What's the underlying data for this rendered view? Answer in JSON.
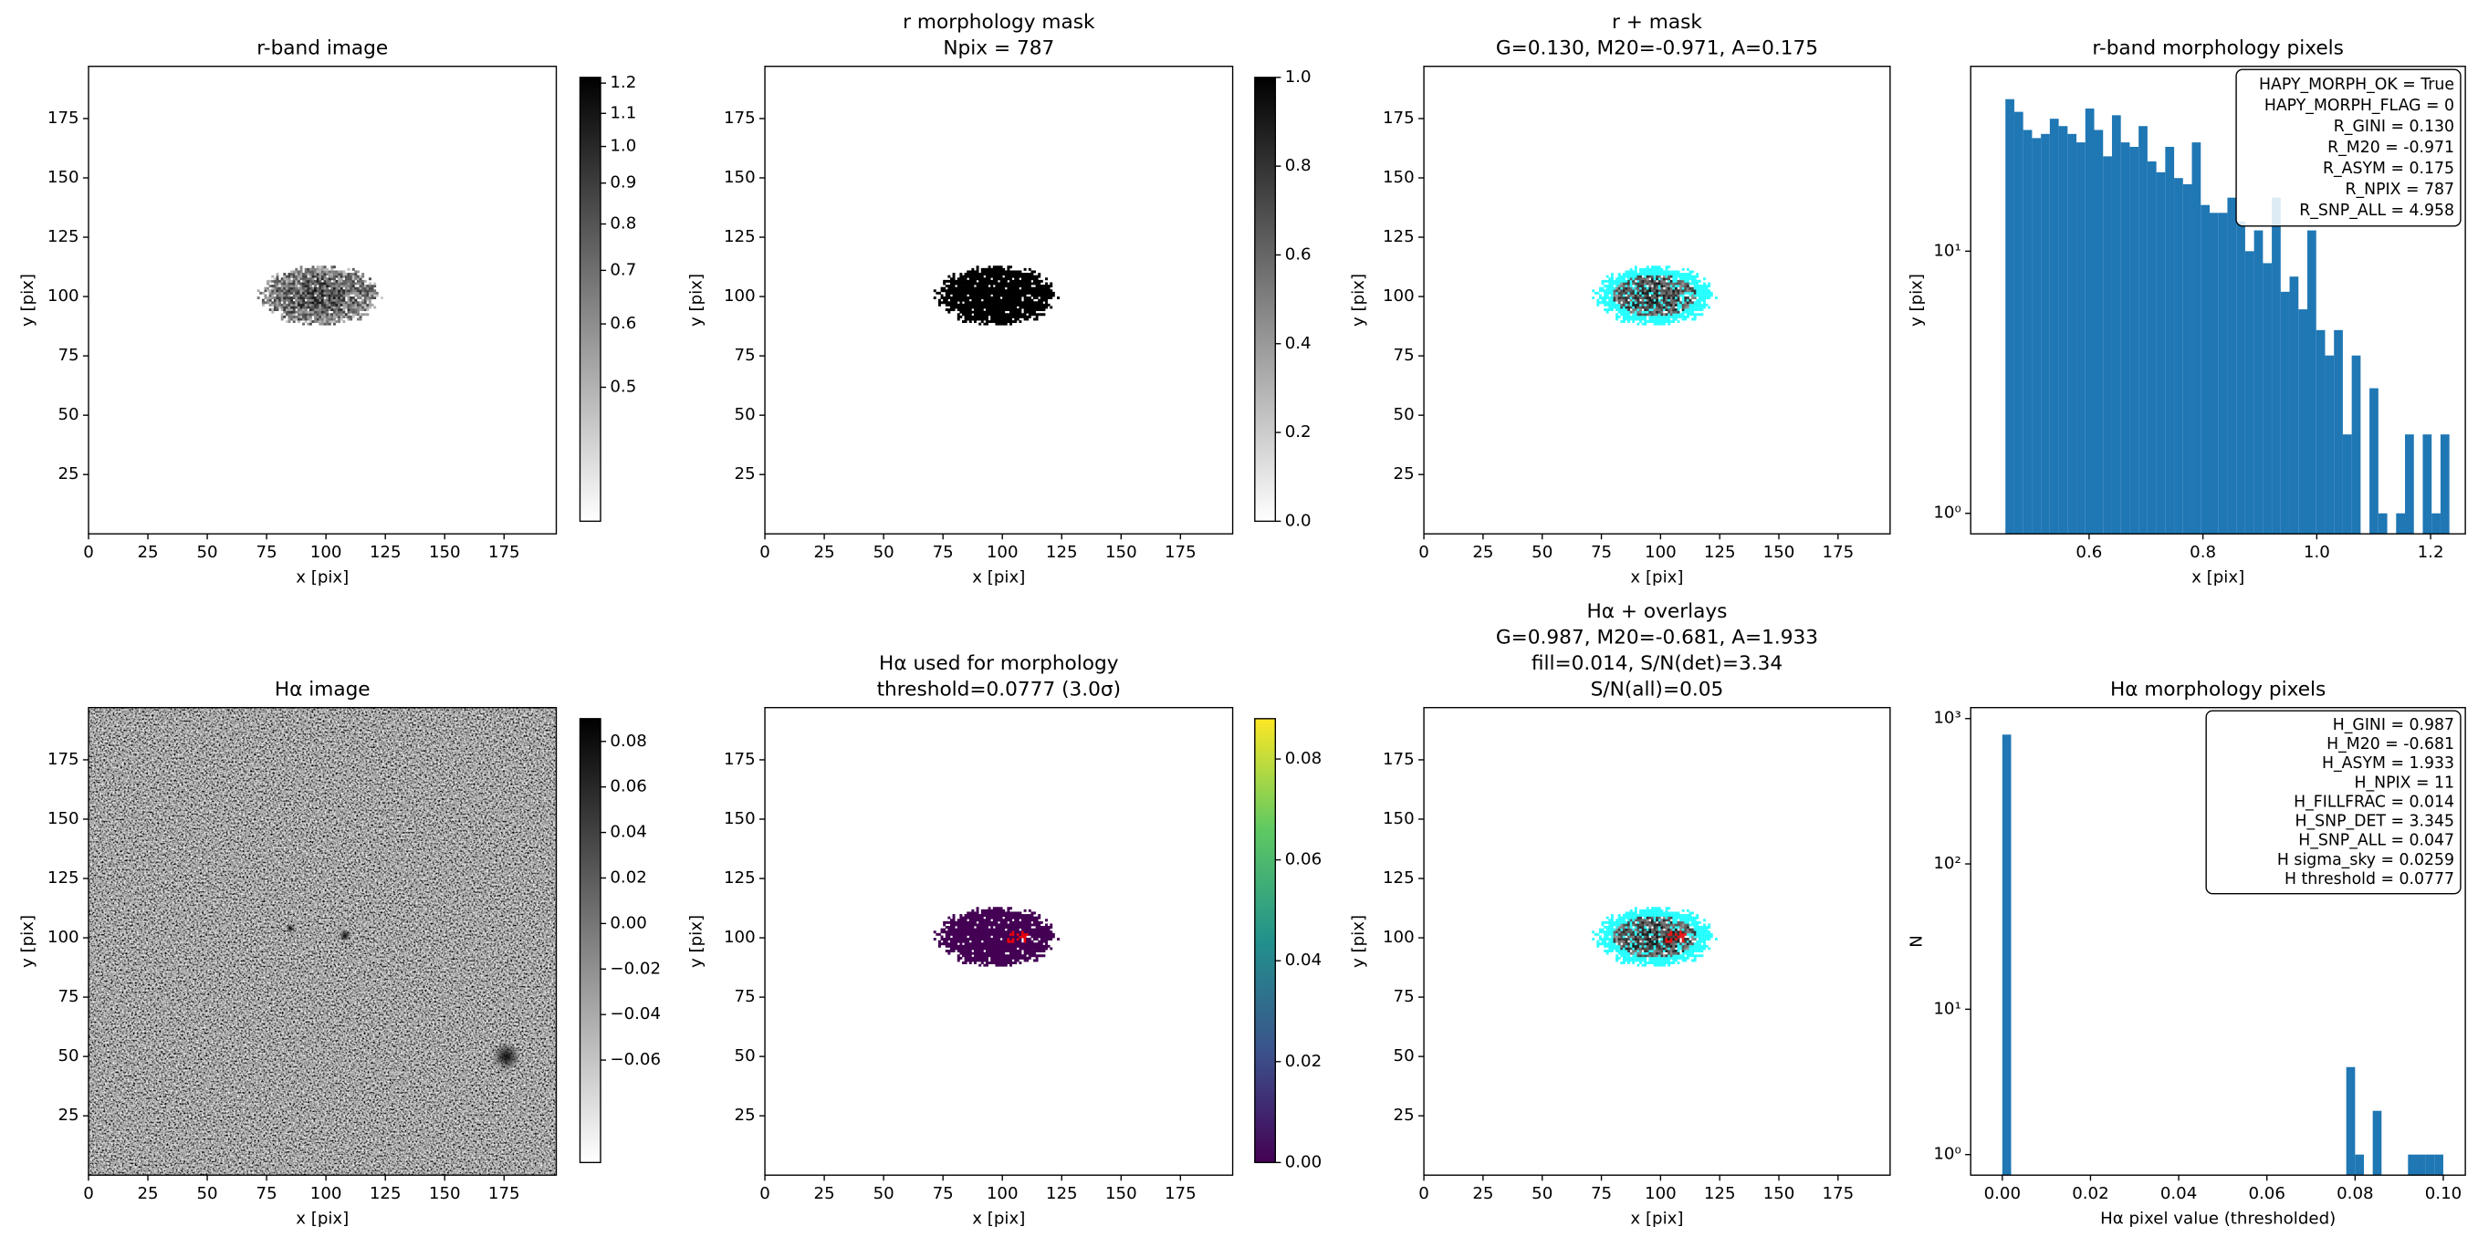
{
  "chart_data": [
    {
      "type": "image",
      "title": [
        "r-band image"
      ],
      "xlabel": "x [pix]",
      "ylabel": "y [pix]",
      "xlim": [
        0,
        197
      ],
      "ylim": [
        0,
        197
      ],
      "xticks": [
        0,
        25,
        50,
        75,
        100,
        125,
        150,
        175
      ],
      "yticks": [
        25,
        50,
        75,
        100,
        125,
        150,
        175
      ],
      "cmap": "gray_r",
      "colorbar": {
        "clim": [
          0.34,
          1.22
        ],
        "scale": "log",
        "cmap": "gray_r",
        "ticks": [
          0.5,
          0.6,
          0.7,
          0.8,
          0.9,
          {
            "value": 1,
            "label": "1.0"
          },
          1.1,
          1.2
        ]
      }
    },
    {
      "type": "image",
      "title": [
        "r morphology mask",
        "Npix = 787"
      ],
      "xlabel": "x [pix]",
      "ylabel": "y [pix]",
      "xlim": [
        0,
        197
      ],
      "ylim": [
        0,
        197
      ],
      "xticks": [
        0,
        25,
        50,
        75,
        100,
        125,
        150,
        175
      ],
      "yticks": [
        25,
        50,
        75,
        100,
        125,
        150,
        175
      ],
      "cmap": "gray_r",
      "colorbar": {
        "clim": [
          0,
          1
        ],
        "scale": "linear",
        "cmap": "gray_r",
        "ticks": [
          {
            "value": 0,
            "label": "0.0"
          },
          0.2,
          0.4,
          0.6,
          0.8,
          {
            "value": 1,
            "label": "1.0"
          }
        ]
      }
    },
    {
      "type": "image",
      "title": [
        "r + mask",
        "G=0.130, M20=-0.971, A=0.175"
      ],
      "xlabel": "x [pix]",
      "ylabel": "y [pix]",
      "xlim": [
        0,
        197
      ],
      "ylim": [
        0,
        197
      ],
      "xticks": [
        0,
        25,
        50,
        75,
        100,
        125,
        150,
        175
      ],
      "yticks": [
        25,
        50,
        75,
        100,
        125,
        150,
        175
      ],
      "cmap": "gray_r",
      "overlay_color": "cyan"
    },
    {
      "type": "histogram",
      "title": [
        "r-band morphology pixels"
      ],
      "xlabel": "x [pix]",
      "ylabel": "y [pix]",
      "color": "#1f77b4",
      "bins": [
        0.453,
        0.4686,
        0.4842,
        0.4998,
        0.5154,
        0.531,
        0.5466,
        0.5622,
        0.5778,
        0.5934,
        0.609,
        0.6246,
        0.6402,
        0.6558,
        0.6714,
        0.687,
        0.7026,
        0.7182,
        0.7338,
        0.7494,
        0.765,
        0.7806,
        0.7962,
        0.8118,
        0.8274,
        0.843,
        0.8586,
        0.8742,
        0.8898,
        0.9054,
        0.921,
        0.9366,
        0.9522,
        0.9678,
        0.9834,
        0.999,
        1.0146,
        1.0302,
        1.0458,
        1.0614,
        1.077,
        1.0926,
        1.1082,
        1.1238,
        1.1394,
        1.155,
        1.1706,
        1.1862,
        1.2018,
        1.2174,
        1.233
      ],
      "values": [
        38,
        34,
        29,
        27,
        28,
        32,
        30,
        28,
        26,
        35,
        29,
        23,
        33,
        26,
        25,
        30,
        22,
        20,
        25,
        19,
        18,
        26,
        15,
        14,
        14,
        16,
        13,
        10,
        12,
        9,
        16,
        7,
        8,
        6,
        12,
        5,
        4,
        5,
        2,
        4,
        0,
        3,
        1,
        0,
        1,
        2,
        0,
        2,
        1,
        2
      ],
      "xlim": [
        0.392,
        1.261
      ],
      "xticks": [
        0.6,
        0.8,
        {
          "value": 1,
          "label": "1.0"
        },
        1.2
      ],
      "ylim": [
        0.835,
        50.7
      ],
      "yscale": "log",
      "yticks": [
        {
          "value": 1,
          "label": "10⁰"
        },
        {
          "value": 10,
          "label": "10¹"
        }
      ],
      "annotation": [
        "HAPY_MORPH_OK = True",
        "HAPY_MORPH_FLAG = 0",
        "R_GINI = 0.130",
        "R_M20 = -0.971",
        "R_ASYM = 0.175",
        "R_NPIX = 787",
        "R_SNP_ALL = 4.958"
      ]
    },
    {
      "type": "image",
      "title": [
        "Hα image"
      ],
      "xlabel": "x [pix]",
      "ylabel": "y [pix]",
      "xlim": [
        0,
        197
      ],
      "ylim": [
        0,
        197
      ],
      "xticks": [
        0,
        25,
        50,
        75,
        100,
        125,
        150,
        175
      ],
      "yticks": [
        25,
        50,
        75,
        100,
        125,
        150,
        175
      ],
      "cmap": "gray_r",
      "colorbar": {
        "clim": [
          -0.105,
          0.09
        ],
        "scale": "linear",
        "cmap": "gray_r",
        "ticks": [
          {
            "value": -0.06,
            "label": "−0.06"
          },
          {
            "value": -0.04,
            "label": "−0.04"
          },
          {
            "value": -0.02,
            "label": "−0.02"
          },
          {
            "value": 0,
            "label": "0.00"
          },
          0.02,
          0.04,
          0.06,
          0.08
        ]
      }
    },
    {
      "type": "image",
      "title": [
        "Hα used for morphology",
        "threshold=0.0777 (3.0σ)"
      ],
      "xlabel": "x [pix]",
      "ylabel": "y [pix]",
      "xlim": [
        0,
        197
      ],
      "ylim": [
        0,
        197
      ],
      "xticks": [
        0,
        25,
        50,
        75,
        100,
        125,
        150,
        175
      ],
      "yticks": [
        25,
        50,
        75,
        100,
        125,
        150,
        175
      ],
      "cmap": "viridis",
      "highlight_color": "red",
      "colorbar": {
        "clim": [
          0,
          0.088
        ],
        "scale": "linear",
        "cmap": "viridis",
        "ticks": [
          {
            "value": 0,
            "label": "0.00"
          },
          0.02,
          0.04,
          0.06,
          0.08
        ]
      }
    },
    {
      "type": "image",
      "title": [
        "Hα + overlays",
        "G=0.987, M20=-0.681, A=1.933",
        "fill=0.014, S/N(det)=3.34",
        "S/N(all)=0.05"
      ],
      "xlabel": "x [pix]",
      "ylabel": "y [pix]",
      "xlim": [
        0,
        197
      ],
      "ylim": [
        0,
        197
      ],
      "xticks": [
        0,
        25,
        50,
        75,
        100,
        125,
        150,
        175
      ],
      "yticks": [
        25,
        50,
        75,
        100,
        125,
        150,
        175
      ],
      "cmap": "gray_r",
      "overlay_color": "cyan",
      "highlight_color": "red"
    },
    {
      "type": "histogram",
      "title": [
        "Hα morphology pixels"
      ],
      "xlabel": "Hα pixel value (thresholded)",
      "ylabel": "N",
      "color": "#1f77b4",
      "bins": [
        0,
        0.002,
        0.004,
        0.006,
        0.008,
        0.01,
        0.012,
        0.014,
        0.016,
        0.018,
        0.02,
        0.022,
        0.024,
        0.026,
        0.028,
        0.03,
        0.032,
        0.034,
        0.036,
        0.038,
        0.04,
        0.042,
        0.044,
        0.046,
        0.048,
        0.05,
        0.052,
        0.054,
        0.056,
        0.058,
        0.06,
        0.062,
        0.064,
        0.066,
        0.068,
        0.07,
        0.072,
        0.074,
        0.076,
        0.078,
        0.08,
        0.082,
        0.084,
        0.086,
        0.088,
        0.09,
        0.092,
        0.094,
        0.096,
        0.098,
        0.1
      ],
      "values": [
        776,
        0,
        0,
        0,
        0,
        0,
        0,
        0,
        0,
        0,
        0,
        0,
        0,
        0,
        0,
        0,
        0,
        0,
        0,
        0,
        0,
        0,
        0,
        0,
        0,
        0,
        0,
        0,
        0,
        0,
        0,
        0,
        0,
        0,
        0,
        0,
        0,
        0,
        0,
        4,
        1,
        0,
        2,
        0,
        0,
        0,
        1,
        1,
        1,
        1
      ],
      "xlim": [
        -0.00717,
        0.105
      ],
      "xticks": [
        {
          "value": 0,
          "label": "0.00"
        },
        0.02,
        0.04,
        0.06,
        0.08,
        {
          "value": 0.1,
          "label": "0.10"
        }
      ],
      "ylim": [
        0.722,
        1190
      ],
      "yscale": "log",
      "yticks": [
        {
          "value": 1,
          "label": "10⁰"
        },
        {
          "value": 10,
          "label": "10¹"
        },
        {
          "value": 100,
          "label": "10²"
        },
        {
          "value": 1000,
          "label": "10³"
        }
      ],
      "annotation": [
        "H_GINI = 0.987",
        "H_M20 = -0.681",
        "H_ASYM = 1.933",
        "H_NPIX = 11",
        "H_FILLFRAC = 0.014",
        "H_SNP_DET = 3.345",
        "H_SNP_ALL = 0.047",
        "H sigma_sky = 0.0259",
        "H threshold = 0.0777"
      ]
    }
  ]
}
